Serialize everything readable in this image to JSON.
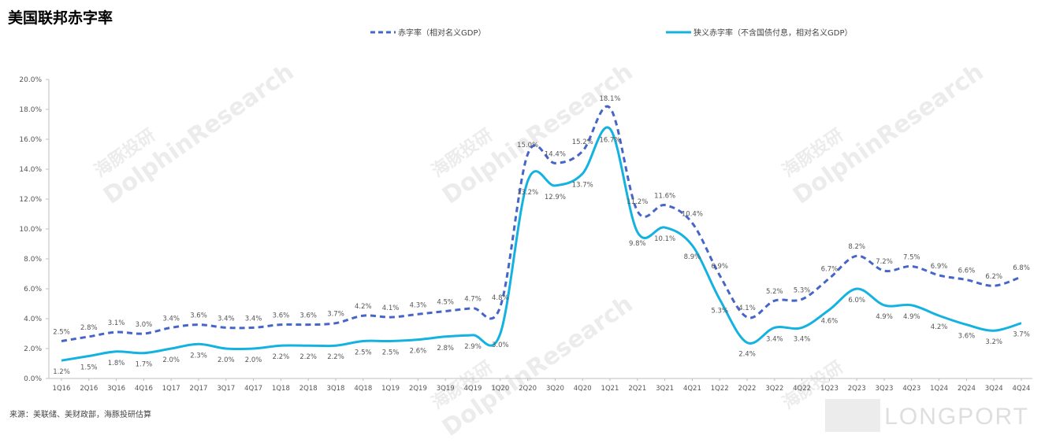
{
  "title": "美国联邦赤字率",
  "source": "来源：美联储、美财政部，海豚投研估算",
  "watermark": {
    "cn": "海豚投研",
    "en": "DolphinResearch",
    "brand": "LONGPORT"
  },
  "colors": {
    "series1": "#4565c8",
    "series2": "#14b2e0",
    "axis": "#bfbfbf",
    "text": "#555555"
  },
  "legend": [
    {
      "label": "赤字率（相对名义GDP）",
      "style": "dashed"
    },
    {
      "label": "狭义赤字率（不含国债付息，相对名义GDP）",
      "style": "solid"
    }
  ],
  "chart_data": {
    "type": "line",
    "title": "美国联邦赤字率",
    "categories": [
      "1Q16",
      "2Q16",
      "3Q16",
      "4Q16",
      "1Q17",
      "2Q17",
      "3Q17",
      "4Q17",
      "1Q18",
      "2Q18",
      "3Q18",
      "4Q18",
      "1Q19",
      "2Q19",
      "3Q19",
      "4Q19",
      "1Q20",
      "2Q20",
      "3Q20",
      "4Q20",
      "1Q21",
      "2Q21",
      "3Q21",
      "4Q21",
      "1Q22",
      "2Q22",
      "3Q22",
      "4Q22",
      "1Q23",
      "2Q23",
      "3Q23",
      "4Q23",
      "1Q24",
      "2Q24",
      "3Q24",
      "4Q24"
    ],
    "yticks": [
      "0.0%",
      "2.0%",
      "4.0%",
      "6.0%",
      "8.0%",
      "10.0%",
      "12.0%",
      "14.0%",
      "16.0%",
      "18.0%",
      "20.0%"
    ],
    "ylim": [
      0,
      20
    ],
    "grid": false,
    "legend_position": "top",
    "series": [
      {
        "name": "赤字率（相对名义GDP）",
        "style": "dashed",
        "values": [
          2.5,
          2.8,
          3.1,
          3.0,
          3.4,
          3.6,
          3.4,
          3.4,
          3.6,
          3.6,
          3.7,
          4.2,
          4.1,
          4.3,
          4.5,
          4.7,
          4.8,
          15.0,
          14.4,
          15.2,
          18.1,
          11.2,
          11.6,
          10.4,
          6.9,
          4.1,
          5.2,
          5.3,
          6.7,
          8.2,
          7.2,
          7.5,
          6.9,
          6.6,
          6.2,
          6.8
        ],
        "labels": [
          "2.5%",
          "2.8%",
          "3.1%",
          "3.0%",
          "3.4%",
          "3.6%",
          "3.4%",
          "3.4%",
          "3.6%",
          "3.6%",
          "3.7%",
          "4.2%",
          "4.1%",
          "4.3%",
          "4.5%",
          "4.7%",
          "4.8%",
          "15.0%",
          "14.4%",
          "15.2%",
          "18.1%",
          "11.2%",
          "11.6%",
          "10.4%",
          "6.9%",
          "4.1%",
          "5.2%",
          "5.3%",
          "6.7%",
          "8.2%",
          "7.2%",
          "7.5%",
          "6.9%",
          "6.6%",
          "6.2%",
          "6.8%"
        ]
      },
      {
        "name": "狭义赤字率（不含国债付息，相对名义GDP）",
        "style": "solid",
        "values": [
          1.2,
          1.5,
          1.8,
          1.7,
          2.0,
          2.3,
          2.0,
          2.0,
          2.2,
          2.2,
          2.2,
          2.5,
          2.5,
          2.6,
          2.8,
          2.9,
          3.0,
          13.2,
          12.9,
          13.7,
          16.7,
          9.8,
          10.1,
          8.9,
          5.3,
          2.4,
          3.4,
          3.4,
          4.6,
          6.0,
          4.9,
          4.9,
          4.2,
          3.6,
          3.2,
          3.7
        ],
        "labels": [
          "1.2%",
          "1.5%",
          "1.8%",
          "1.7%",
          "2.0%",
          "2.3%",
          "2.0%",
          "2.0%",
          "2.2%",
          "2.2%",
          "2.2%",
          "2.5%",
          "2.5%",
          "2.6%",
          "2.8%",
          "2.9%",
          "3.0%",
          "13.2%",
          "12.9%",
          "13.7%",
          "16.7%",
          "9.8%",
          "10.1%",
          "8.9%",
          "5.3%",
          "2.4%",
          "3.4%",
          "3.4%",
          "4.6%",
          "6.0%",
          "4.9%",
          "4.9%",
          "4.2%",
          "3.6%",
          "3.2%",
          "3.7%"
        ]
      }
    ]
  }
}
